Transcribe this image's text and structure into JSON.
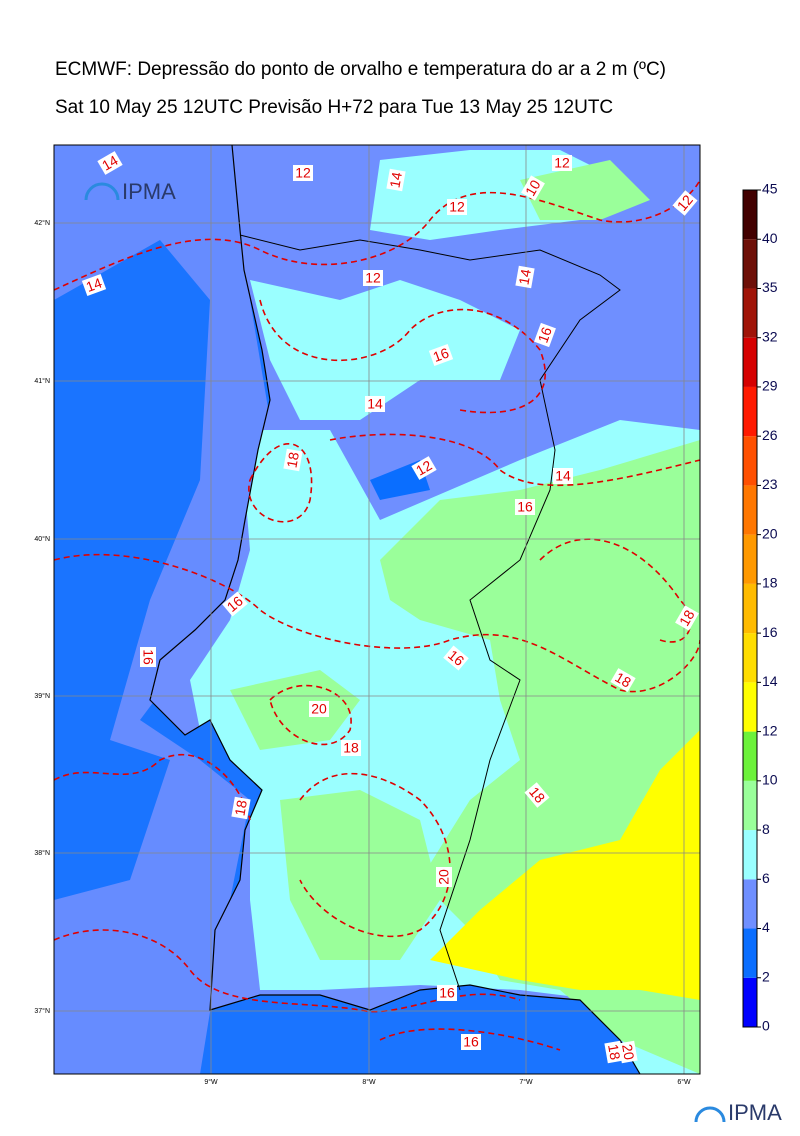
{
  "header": {
    "title": "ECMWF: Depressão do ponto de orvalho e temperatura do ar a 2 m (ºC)",
    "subtitle": "Sat 10 May 25 12UTC Previsão H+72 para Tue 13 May 25 12UTC"
  },
  "map": {
    "lat_labels": [
      "42°N",
      "41°N",
      "40°N",
      "39°N",
      "38°N",
      "37°N"
    ],
    "lon_labels": [
      "9°W",
      "8°W",
      "7°W",
      "6°W"
    ],
    "contour_labels": [
      "14",
      "12",
      "14",
      "12",
      "10",
      "12",
      "12",
      "14",
      "12",
      "14",
      "16",
      "16",
      "14",
      "12",
      "18",
      "14",
      "16",
      "16",
      "16",
      "16",
      "18",
      "18",
      "20",
      "18",
      "18",
      "18",
      "20",
      "16",
      "16",
      "18",
      "20"
    ],
    "logo": "IPMA"
  },
  "colorbar": {
    "ticks": [
      0,
      2,
      4,
      6,
      8,
      10,
      12,
      14,
      16,
      18,
      20,
      23,
      26,
      29,
      32,
      35,
      40,
      45
    ],
    "colors": [
      "#0000ff",
      "#0a6eff",
      "#6f8fff",
      "#9affff",
      "#9aff9a",
      "#6cf23a",
      "#ffff00",
      "#ffdd00",
      "#ffbb00",
      "#ff9900",
      "#ff7700",
      "#ff5000",
      "#ff1a00",
      "#d60000",
      "#a01408",
      "#6e1008",
      "#420000"
    ]
  },
  "footer": {
    "logo": "IPMA"
  }
}
